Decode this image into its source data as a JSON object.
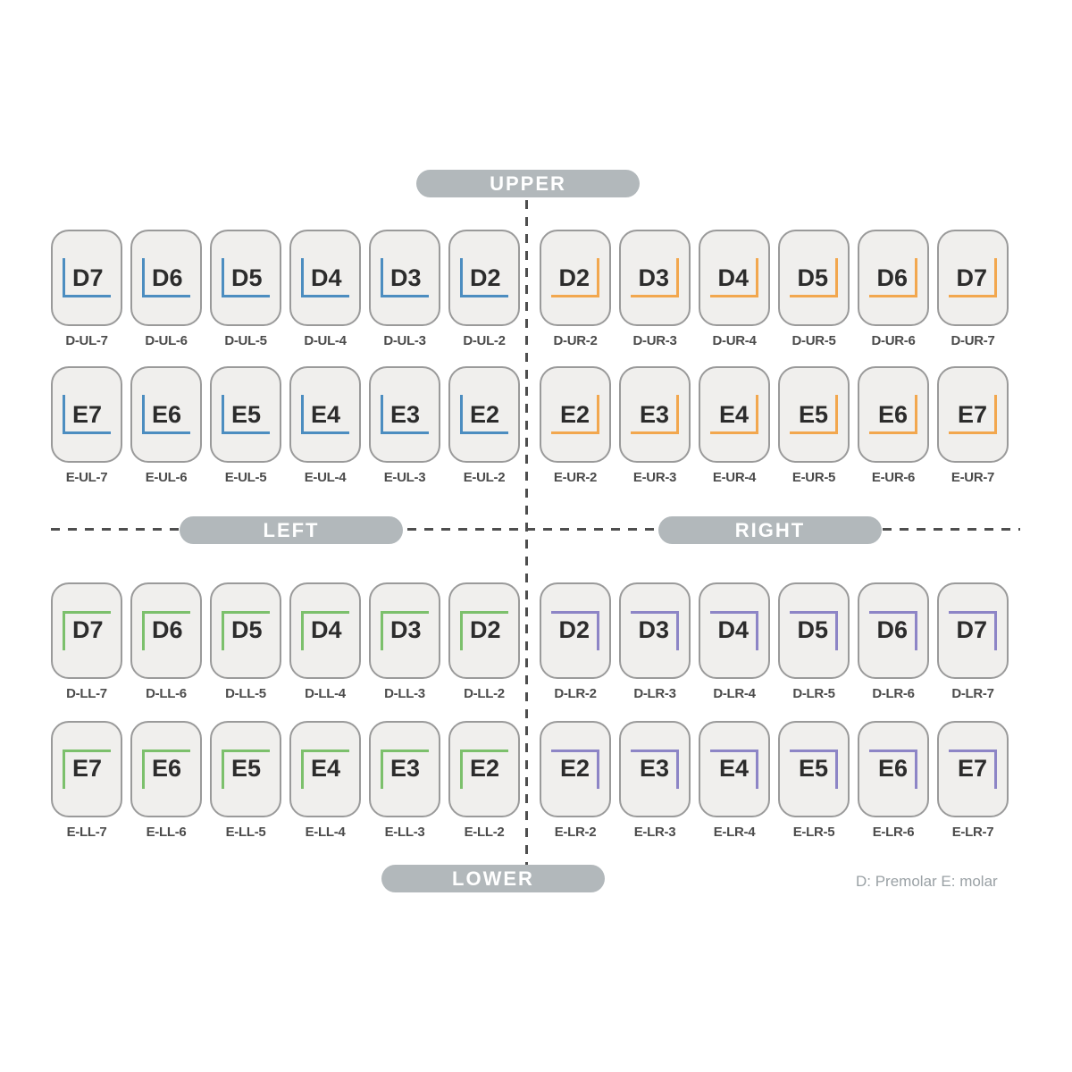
{
  "section_labels": {
    "upper": "UPPER",
    "lower": "LOWER",
    "left": "LEFT",
    "right": "RIGHT"
  },
  "legend": "D: Premolar E: molar",
  "colors": {
    "upper_left": "#4c8dc0",
    "upper_right": "#f2a74e",
    "lower_left": "#7cc06c",
    "lower_right": "#8d85c6",
    "pill_background": "#b2b8bb",
    "card_background": "#f0efed",
    "card_border": "#9a9a9a"
  },
  "quadrants": [
    {
      "id": "upper-left",
      "corner": "ul",
      "rows": [
        [
          {
            "num": "D7",
            "code": "D-UL-7"
          },
          {
            "num": "D6",
            "code": "D-UL-6"
          },
          {
            "num": "D5",
            "code": "D-UL-5"
          },
          {
            "num": "D4",
            "code": "D-UL-4"
          },
          {
            "num": "D3",
            "code": "D-UL-3"
          },
          {
            "num": "D2",
            "code": "D-UL-2"
          }
        ],
        [
          {
            "num": "E7",
            "code": "E-UL-7"
          },
          {
            "num": "E6",
            "code": "E-UL-6"
          },
          {
            "num": "E5",
            "code": "E-UL-5"
          },
          {
            "num": "E4",
            "code": "E-UL-4"
          },
          {
            "num": "E3",
            "code": "E-UL-3"
          },
          {
            "num": "E2",
            "code": "E-UL-2"
          }
        ]
      ]
    },
    {
      "id": "upper-right",
      "corner": "ur",
      "rows": [
        [
          {
            "num": "D2",
            "code": "D-UR-2"
          },
          {
            "num": "D3",
            "code": "D-UR-3"
          },
          {
            "num": "D4",
            "code": "D-UR-4"
          },
          {
            "num": "D5",
            "code": "D-UR-5"
          },
          {
            "num": "D6",
            "code": "D-UR-6"
          },
          {
            "num": "D7",
            "code": "D-UR-7"
          }
        ],
        [
          {
            "num": "E2",
            "code": "E-UR-2"
          },
          {
            "num": "E3",
            "code": "E-UR-3"
          },
          {
            "num": "E4",
            "code": "E-UR-4"
          },
          {
            "num": "E5",
            "code": "E-UR-5"
          },
          {
            "num": "E6",
            "code": "E-UR-6"
          },
          {
            "num": "E7",
            "code": "E-UR-7"
          }
        ]
      ]
    },
    {
      "id": "lower-left",
      "corner": "ll",
      "rows": [
        [
          {
            "num": "D7",
            "code": "D-LL-7"
          },
          {
            "num": "D6",
            "code": "D-LL-6"
          },
          {
            "num": "D5",
            "code": "D-LL-5"
          },
          {
            "num": "D4",
            "code": "D-LL-4"
          },
          {
            "num": "D3",
            "code": "D-LL-3"
          },
          {
            "num": "D2",
            "code": "D-LL-2"
          }
        ],
        [
          {
            "num": "E7",
            "code": "E-LL-7"
          },
          {
            "num": "E6",
            "code": "E-LL-6"
          },
          {
            "num": "E5",
            "code": "E-LL-5"
          },
          {
            "num": "E4",
            "code": "E-LL-4"
          },
          {
            "num": "E3",
            "code": "E-LL-3"
          },
          {
            "num": "E2",
            "code": "E-LL-2"
          }
        ]
      ]
    },
    {
      "id": "lower-right",
      "corner": "lr",
      "rows": [
        [
          {
            "num": "D2",
            "code": "D-LR-2"
          },
          {
            "num": "D3",
            "code": "D-LR-3"
          },
          {
            "num": "D4",
            "code": "D-LR-4"
          },
          {
            "num": "D5",
            "code": "D-LR-5"
          },
          {
            "num": "D6",
            "code": "D-LR-6"
          },
          {
            "num": "D7",
            "code": "D-LR-7"
          }
        ],
        [
          {
            "num": "E2",
            "code": "E-LR-2"
          },
          {
            "num": "E3",
            "code": "E-LR-3"
          },
          {
            "num": "E4",
            "code": "E-LR-4"
          },
          {
            "num": "E5",
            "code": "E-LR-5"
          },
          {
            "num": "E6",
            "code": "E-LR-6"
          },
          {
            "num": "E7",
            "code": "E-LR-7"
          }
        ]
      ]
    }
  ]
}
